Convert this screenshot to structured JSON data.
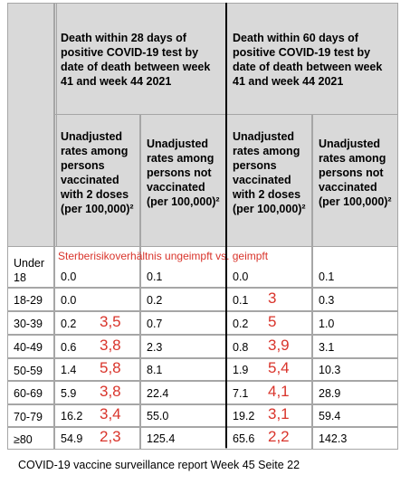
{
  "table": {
    "headers": [
      "Death within 28 days of positive COVID-19 test by date of death between week 41 and week 44 2021",
      "Death within 60 days of positive COVID-19 test by date of death between week 41 and week 44 2021"
    ],
    "subheaders": [
      "Unadjusted rates among persons vaccinated with 2 doses (per 100,000)²",
      "Unadjusted rates among persons not vaccinated (per 100,000)²",
      "Unadjusted rates among persons vaccinated with 2 doses (per 100,000)²",
      "Unadjusted rates among persons not vaccinated (per 100,000)²"
    ],
    "annotation": "Sterberisikoverhältnis  ungeimpft vs. geimpft",
    "rows": [
      {
        "label": "Under 18",
        "values": [
          "0.0",
          "0.1",
          "0.0",
          "0.1"
        ]
      },
      {
        "label": "18-29",
        "values": [
          "0.0",
          "0.2",
          "0.1",
          "0.3"
        ],
        "ratio60": "3"
      },
      {
        "label": "30-39",
        "values": [
          "0.2",
          "0.7",
          "0.2",
          "1.0"
        ],
        "ratio28": "3,5",
        "ratio60": "5"
      },
      {
        "label": "40-49",
        "values": [
          "0.6",
          "2.3",
          "0.8",
          "3.1"
        ],
        "ratio28": "3,8",
        "ratio60": "3,9"
      },
      {
        "label": "50-59",
        "values": [
          "1.4",
          "8.1",
          "1.9",
          "10.3"
        ],
        "ratio28": "5,8",
        "ratio60": "5,4"
      },
      {
        "label": "60-69",
        "values": [
          "5.9",
          "22.4",
          "7.1",
          "28.9"
        ],
        "ratio28": "3,8",
        "ratio60": "4,1"
      },
      {
        "label": "70-79",
        "values": [
          "16.2",
          "55.0",
          "19.2",
          "59.4"
        ],
        "ratio28": "3,4",
        "ratio60": "3,1"
      },
      {
        "label": "≥80",
        "values": [
          "54.9",
          "125.4",
          "65.6",
          "142.3"
        ],
        "ratio28": "2,3",
        "ratio60": "2,2"
      }
    ]
  },
  "caption": "COVID-19 vaccine surveillance report  Week 45 Seite 22"
}
